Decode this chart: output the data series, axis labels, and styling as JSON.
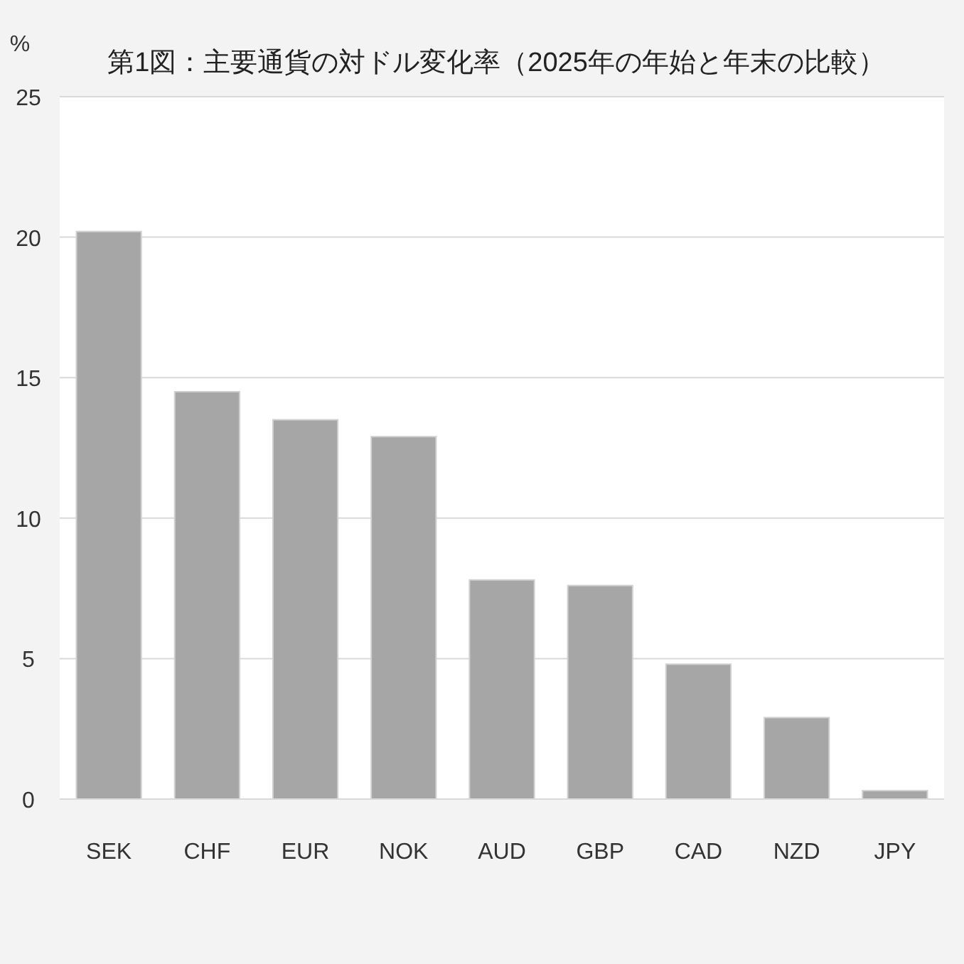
{
  "chart_data": {
    "type": "bar",
    "title": "第1図：主要通貨の対ドル変化率（2025年の年始と年末の比較）",
    "ylabel": "%",
    "categories": [
      "SEK",
      "CHF",
      "EUR",
      "NOK",
      "AUD",
      "GBP",
      "CAD",
      "NZD",
      "JPY"
    ],
    "values": [
      20.2,
      14.5,
      13.5,
      12.9,
      7.8,
      7.6,
      4.8,
      2.9,
      0.3
    ],
    "color": "#a6a6a6",
    "ylim": [
      0,
      25
    ],
    "yticks": [
      0,
      5,
      10,
      15,
      20,
      25
    ],
    "grid": "y"
  }
}
